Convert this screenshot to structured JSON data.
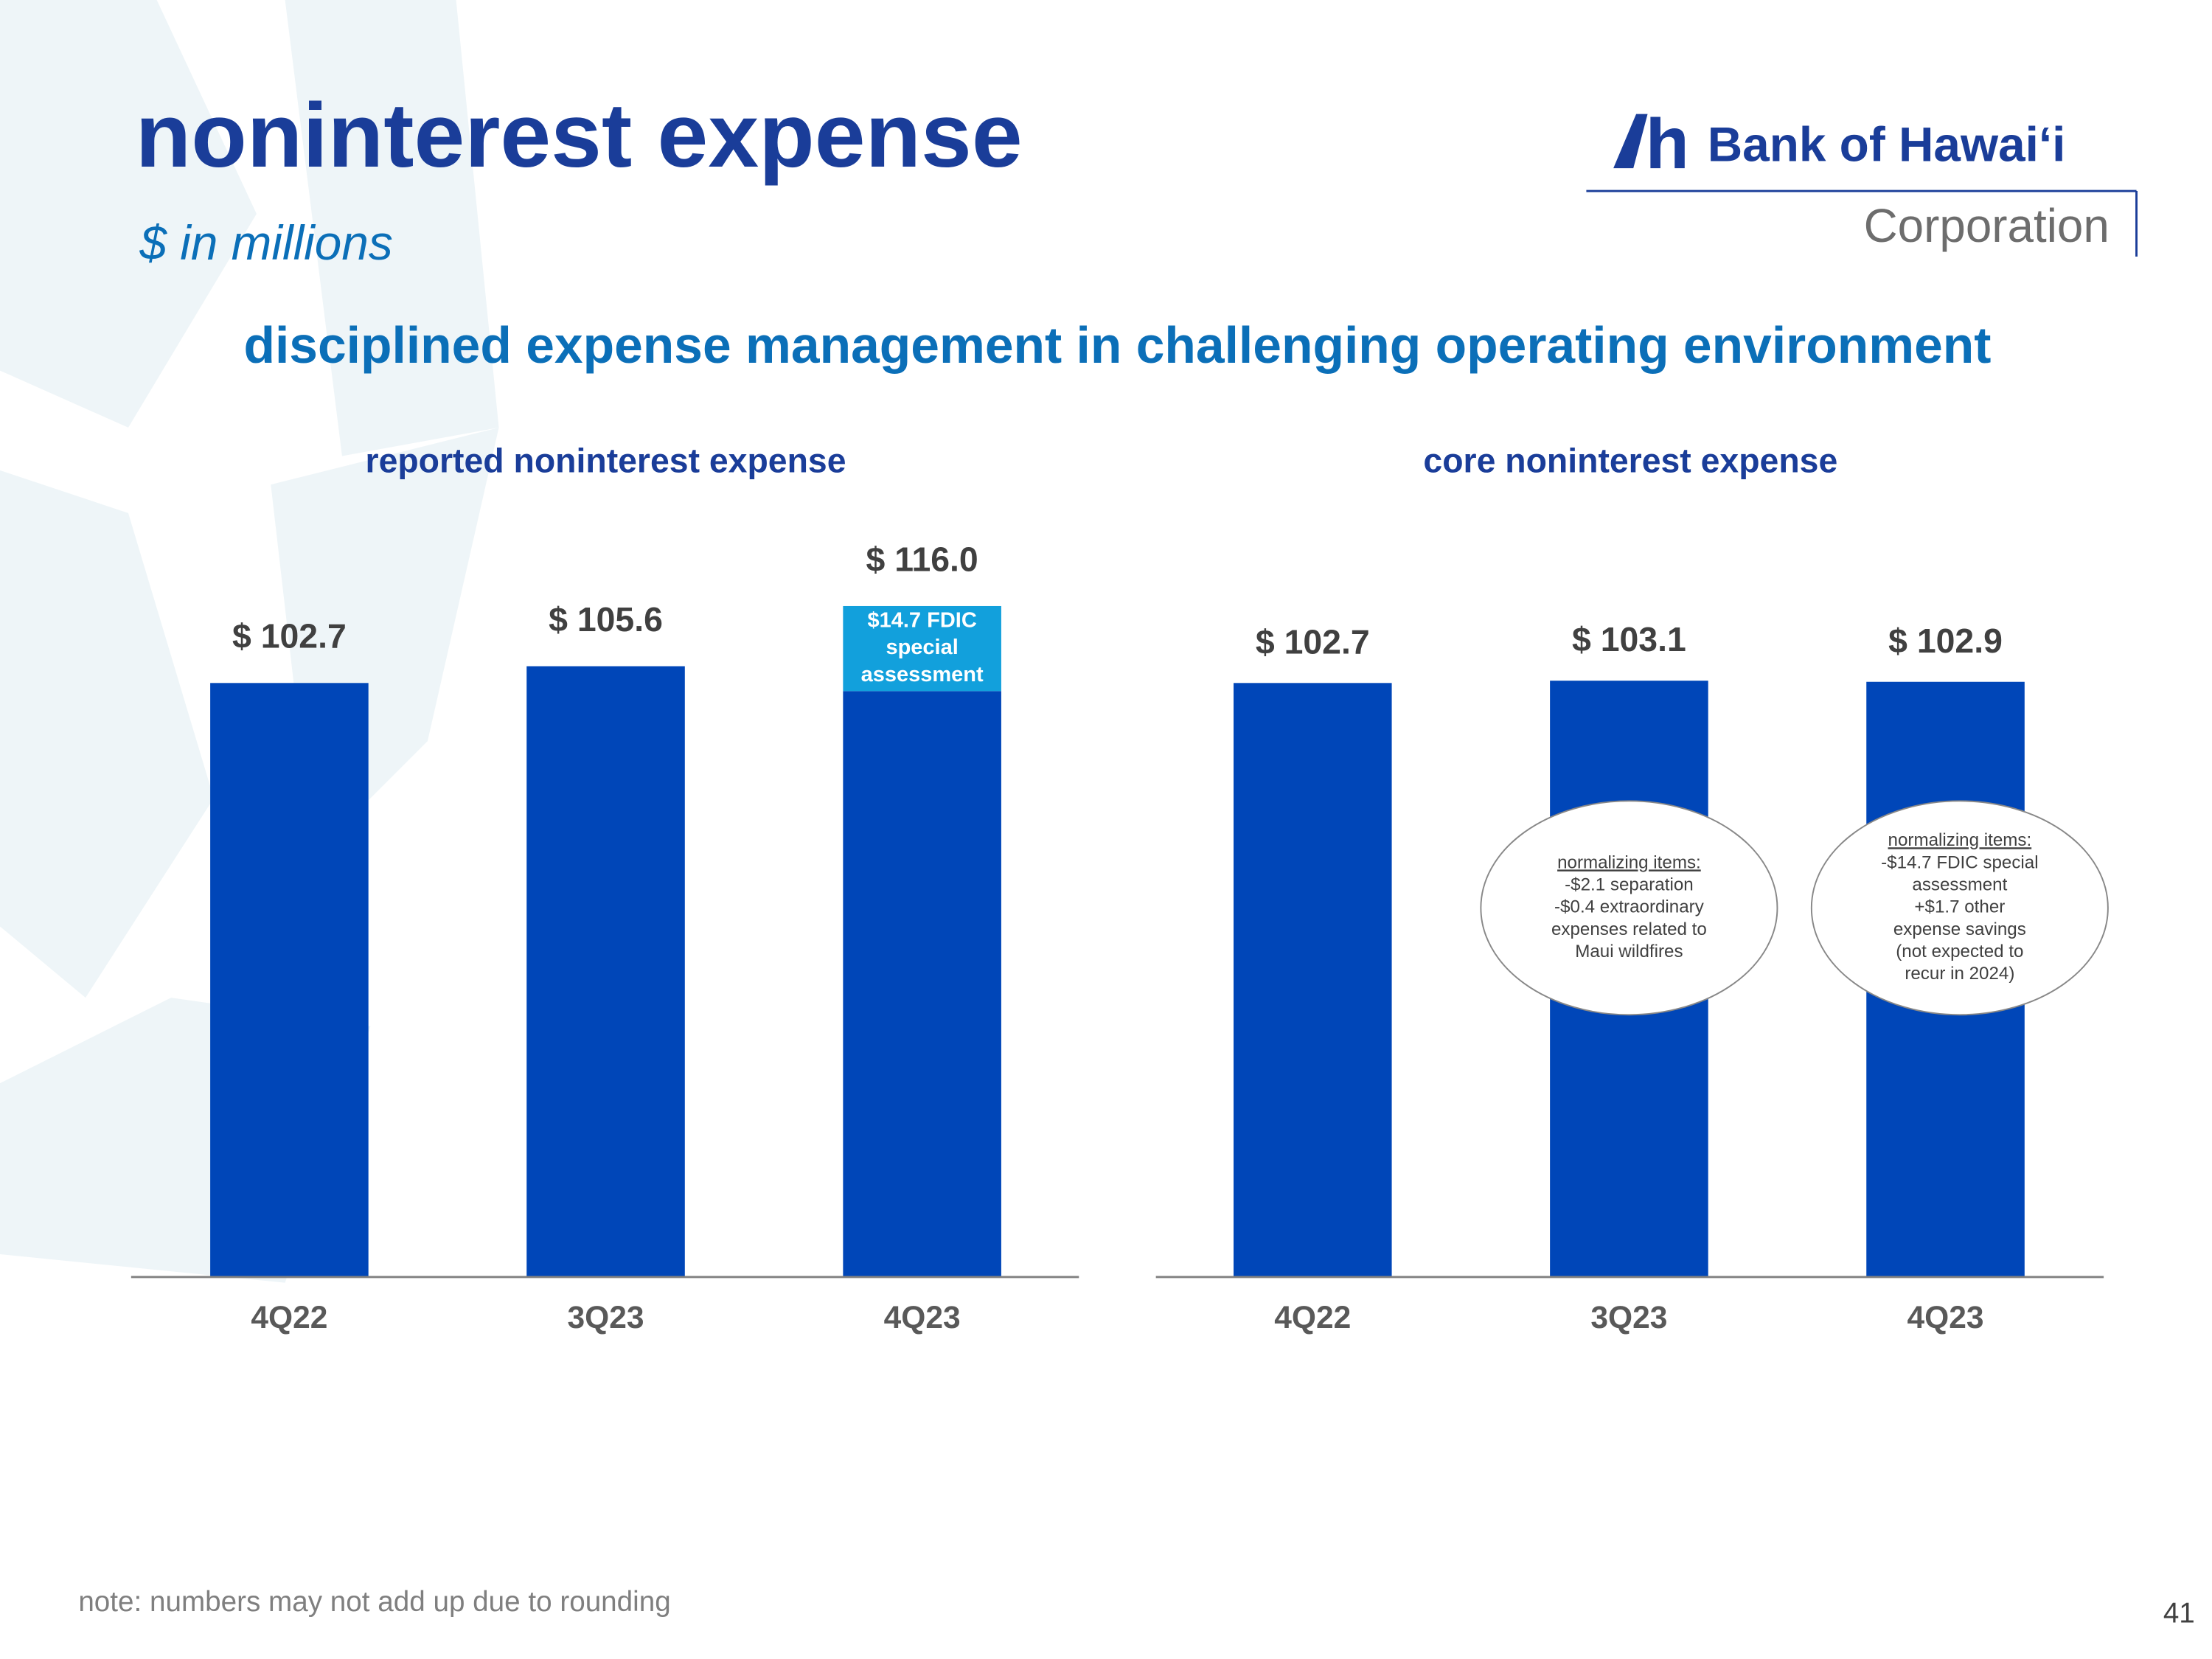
{
  "title": "noninterest expense",
  "subtitle": "$ in millions",
  "headline": "disciplined expense management in challenging operating environment",
  "logo": {
    "name": "Bank of Hawaiʻi",
    "sub": "Corporation"
  },
  "note": "note: numbers may not add up due to rounding",
  "page_number": "41",
  "chart_data": [
    {
      "type": "bar",
      "title": "reported noninterest expense",
      "categories": [
        "4Q22",
        "3Q23",
        "4Q23"
      ],
      "series": [
        {
          "color": "#0046b8",
          "values": [
            102.7,
            105.6,
            101.3
          ]
        },
        {
          "color": "#12a0dc",
          "values": [
            null,
            null,
            14.7
          ],
          "value_labels": [
            null,
            null,
            "$14.7 FDIC special assessment"
          ]
        }
      ],
      "totals": {
        "values": [
          102.7,
          105.6,
          116.0
        ],
        "value_labels": [
          "$ 102.7",
          "$ 105.6",
          "$ 116.0"
        ]
      },
      "ylim": [
        0,
        120
      ]
    },
    {
      "type": "bar",
      "title": "core noninterest expense",
      "categories": [
        "4Q22",
        "3Q23",
        "4Q23"
      ],
      "series": [
        {
          "color": "#0046b8",
          "values": [
            102.7,
            103.1,
            102.9
          ],
          "value_labels": [
            "$ 102.7",
            "$ 103.1",
            "$ 102.9"
          ]
        }
      ],
      "annotations": [
        {
          "heading": "normalizing items:",
          "lines": [
            "-$2.1 separation",
            "-$0.4  extraordinary",
            "expenses related to",
            "Maui wildfires"
          ]
        },
        {
          "heading": "normalizing items:",
          "lines": [
            "-$14.7 FDIC special",
            "assessment",
            "+$1.7 other",
            "expense savings",
            "(not expected to",
            "recur in 2024)"
          ]
        }
      ],
      "ylim": [
        0,
        120
      ]
    }
  ]
}
